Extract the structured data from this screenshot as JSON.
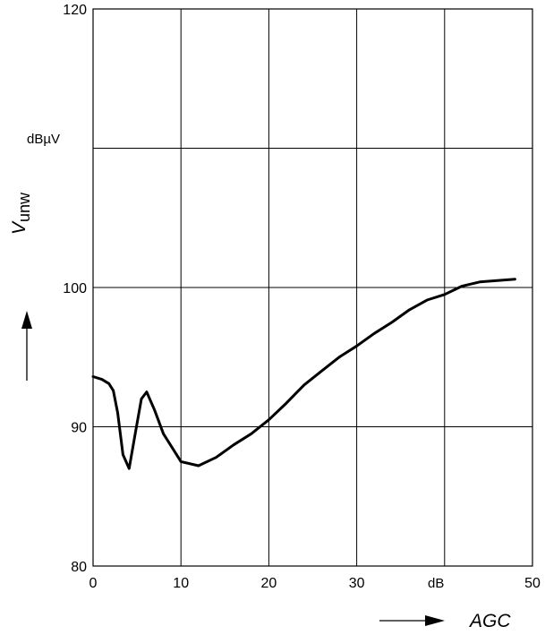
{
  "chart_data": {
    "type": "line",
    "title": "",
    "xlabel": "AGC",
    "xunit": "dB",
    "ylabel_main": "V",
    "ylabel_sub": "unw",
    "yunit": "dBµV",
    "xlim": [
      0,
      50
    ],
    "ylim": [
      80,
      120
    ],
    "xticks": [
      "0",
      "10",
      "20",
      "30",
      "50"
    ],
    "yticks": [
      "80",
      "90",
      "100",
      "120"
    ],
    "grid": true,
    "series": [
      {
        "x": [
          0,
          1,
          1.8,
          2.3,
          2.8,
          3.4,
          4.1,
          4.8,
          5.5,
          6.1,
          7,
          8,
          10,
          12,
          14,
          16,
          18,
          20,
          22,
          24,
          26,
          28,
          30,
          32,
          34,
          36,
          38,
          40,
          42,
          44,
          46,
          48
        ],
        "y": [
          93.6,
          93.4,
          93.1,
          92.6,
          91,
          88,
          87,
          89.5,
          92,
          92.5,
          91.2,
          89.5,
          87.5,
          87.2,
          87.8,
          88.7,
          89.5,
          90.5,
          91.7,
          93,
          94,
          95,
          95.8,
          96.7,
          97.5,
          98.4,
          99.1,
          99.5,
          100.1,
          100.4,
          100.5,
          100.6
        ]
      }
    ],
    "colors": {
      "line": "#000000",
      "grid": "#000000"
    }
  }
}
